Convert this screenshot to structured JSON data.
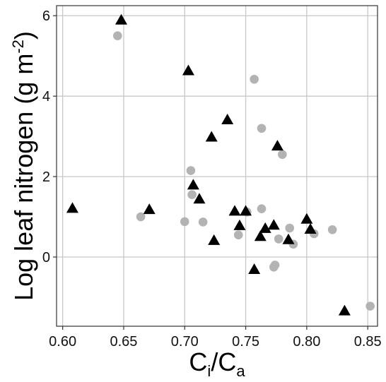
{
  "chart_data": {
    "type": "scatter",
    "title": "",
    "xlabel": "Ci/Ca",
    "ylabel": "Log leaf nitrogen (g m-2)",
    "xlabel_parts": {
      "main": "C",
      "sub1": "i",
      "sep": "/",
      "main2": "C",
      "sub2": "a"
    },
    "ylabel_parts": {
      "text": "Log leaf nitrogen (g m",
      "sup": "-2",
      "close": ")"
    },
    "xlim": [
      0.595,
      0.858
    ],
    "ylim": [
      -1.72,
      6.25
    ],
    "x_ticks": [
      0.6,
      0.65,
      0.7,
      0.75,
      0.8,
      0.85
    ],
    "x_tick_labels": [
      "0.60",
      "0.65",
      "0.70",
      "0.75",
      "0.80",
      "0.85"
    ],
    "y_ticks": [
      0,
      2,
      4,
      6
    ],
    "y_tick_labels": [
      "0",
      "2",
      "4",
      "6"
    ],
    "grid": true,
    "legend": "none",
    "series": [
      {
        "marker": "circle",
        "color": "#b3b3b3",
        "points": [
          [
            0.645,
            5.5
          ],
          [
            0.757,
            4.42
          ],
          [
            0.763,
            3.2
          ],
          [
            0.78,
            2.55
          ],
          [
            0.705,
            2.15
          ],
          [
            0.706,
            1.55
          ],
          [
            0.763,
            1.2
          ],
          [
            0.751,
            1.12
          ],
          [
            0.664,
            1.0
          ],
          [
            0.7,
            0.88
          ],
          [
            0.715,
            0.87
          ],
          [
            0.786,
            0.72
          ],
          [
            0.821,
            0.68
          ],
          [
            0.806,
            0.58
          ],
          [
            0.744,
            0.55
          ],
          [
            0.777,
            0.45
          ],
          [
            0.789,
            0.32
          ],
          [
            0.774,
            -0.2
          ],
          [
            0.773,
            -0.25
          ],
          [
            0.852,
            -1.22
          ]
        ]
      },
      {
        "marker": "triangle",
        "color": "#000000",
        "points": [
          [
            0.648,
            5.88
          ],
          [
            0.703,
            4.62
          ],
          [
            0.735,
            3.4
          ],
          [
            0.722,
            2.97
          ],
          [
            0.776,
            2.75
          ],
          [
            0.707,
            1.78
          ],
          [
            0.712,
            1.43
          ],
          [
            0.608,
            1.2
          ],
          [
            0.671,
            1.17
          ],
          [
            0.741,
            1.13
          ],
          [
            0.75,
            1.13
          ],
          [
            0.8,
            0.93
          ],
          [
            0.773,
            0.78
          ],
          [
            0.745,
            0.77
          ],
          [
            0.766,
            0.7
          ],
          [
            0.803,
            0.68
          ],
          [
            0.762,
            0.5
          ],
          [
            0.785,
            0.42
          ],
          [
            0.724,
            0.4
          ],
          [
            0.757,
            -0.32
          ],
          [
            0.831,
            -1.35
          ]
        ]
      }
    ]
  }
}
